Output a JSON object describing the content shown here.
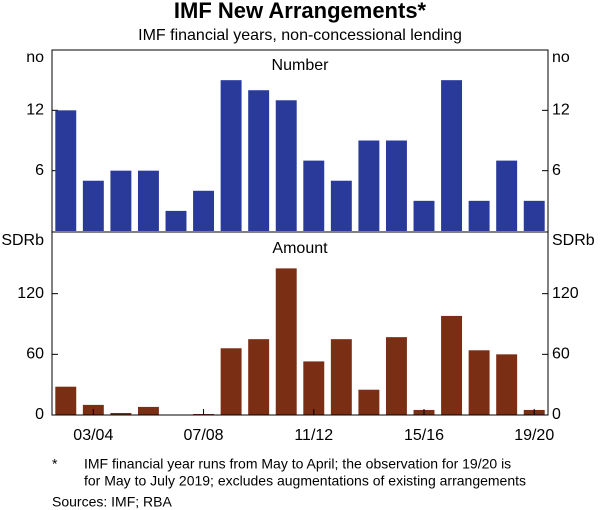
{
  "title": "IMF New Arrangements*",
  "subtitle": "IMF financial years, non-concessional lending",
  "footnote": {
    "marker": "*",
    "lines": [
      "IMF financial year runs from May to April; the observation for 19/20 is",
      "for May to July 2019; excludes augmentations of existing arrangements"
    ]
  },
  "sources": "Sources: IMF; RBA",
  "chart_data": [
    {
      "type": "bar",
      "title": "Number",
      "y_unit": "no",
      "color": "#2a3a9b",
      "values": [
        12,
        5,
        6,
        6,
        2,
        4,
        15,
        14,
        13,
        7,
        5,
        9,
        9,
        3,
        15,
        3,
        7,
        3
      ],
      "ylim": [
        0,
        18
      ],
      "yticks": [
        6,
        12
      ]
    },
    {
      "type": "bar",
      "title": "Amount",
      "y_unit": "SDRb",
      "color": "#7a2e14",
      "categories": [
        null,
        "03/04",
        null,
        null,
        null,
        "07/08",
        null,
        null,
        null,
        "11/12",
        null,
        null,
        null,
        "15/16",
        null,
        null,
        null,
        "19/20"
      ],
      "values": [
        28,
        10,
        2,
        8,
        0,
        1,
        66,
        75,
        145,
        53,
        75,
        25,
        77,
        5,
        98,
        64,
        60,
        5
      ],
      "ylim": [
        0,
        180
      ],
      "yticks": [
        0,
        60,
        120
      ]
    }
  ]
}
